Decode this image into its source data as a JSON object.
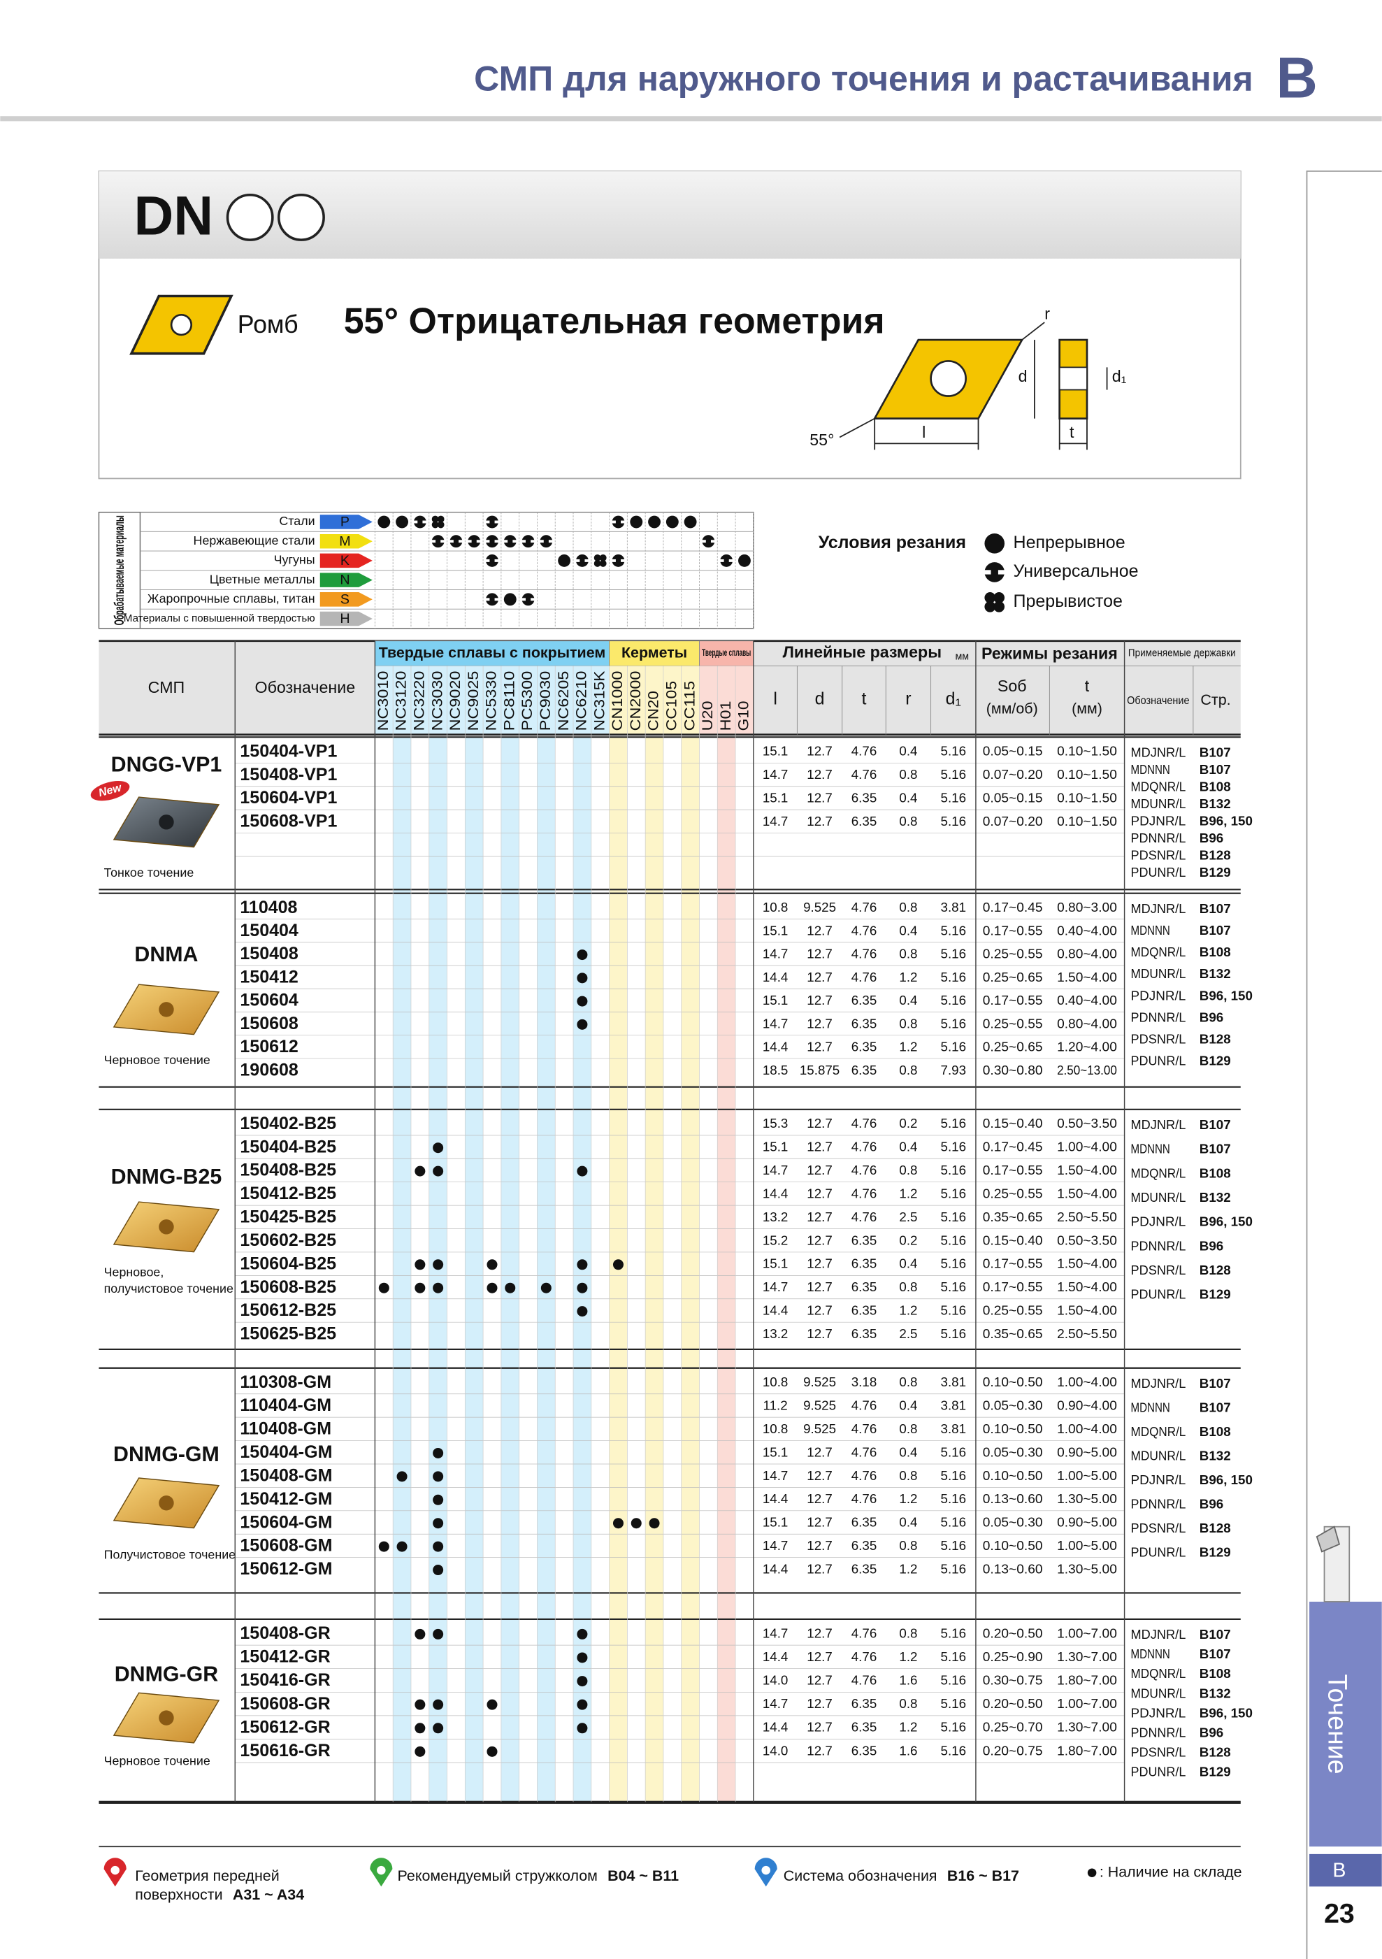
{
  "header": {
    "title": "СМП для наружного точения и растачивания",
    "section": "B"
  },
  "insert": {
    "code": "DN",
    "shape": "Ромб",
    "geometry": "55° Отрицательная геометрия",
    "diagram": {
      "r": "r",
      "d": "d",
      "d1": "d₁",
      "l": "l",
      "t": "t",
      "angle": "55°"
    }
  },
  "materials": {
    "label": "Обрабатываемые материалы",
    "rows": [
      {
        "name": "Стали",
        "code": "P",
        "color": "#2f6fd8",
        "conditions": {
          "NC3010": "Непрерывное",
          "NC3120": "Непрерывное",
          "NC3220": "Универсальное",
          "NC3030": "Прерывистое",
          "NC5330": "Универсальное",
          "CN1000": "Универсальное",
          "CN2000": "Непрерывное",
          "CN20": "Непрерывное",
          "CC105": "Непрерывное",
          "CC115": "Непрерывное"
        }
      },
      {
        "name": "Нержавеющие стали",
        "code": "M",
        "color": "#f2df10",
        "conditions": {
          "NC3030": "Универсальное",
          "NC9020": "Универсальное",
          "NC9025": "Универсальное",
          "NC5330": "Универсальное",
          "PC8110": "Универсальное",
          "PC5300": "Универсальное",
          "PC9030": "Универсальное",
          "U20": "Универсальное"
        }
      },
      {
        "name": "Чугуны",
        "code": "K",
        "color": "#e52420",
        "conditions": {
          "NC5330": "Универсальное",
          "NC6205": "Непрерывное",
          "NC6210": "Универсальное",
          "NC315K": "Прерывистое",
          "CN1000": "Универсальное",
          "H01": "Универсальное",
          "G10": "Непрерывное"
        }
      },
      {
        "name": "Цветные металлы",
        "code": "N",
        "color": "#1f9c3c",
        "conditions": {}
      },
      {
        "name": "Жаропрочные сплавы, титан",
        "code": "S",
        "color": "#f29a1f",
        "conditions": {
          "NC5330": "Универсальное",
          "PC8110": "Непрерывное",
          "PC5300": "Универсальное"
        }
      },
      {
        "name": "Материалы с повышенной твердостью",
        "code": "H",
        "color": "#b5b5b5",
        "conditions": {}
      }
    ]
  },
  "legend": {
    "title": "Условия резания",
    "items": [
      "Непрерывное",
      "Универсальное",
      "Прерывистое"
    ]
  },
  "table": {
    "headers": {
      "insert": "СМП",
      "designation": "Обозначение",
      "dimensions": "Линейные размеры",
      "unit": "мм",
      "l": "l",
      "d": "d",
      "t": "t",
      "r": "r",
      "d1": "d₁",
      "conditions": "Режимы резания",
      "feed": "Sоб",
      "feed_unit": "(мм/об)",
      "depth": "t",
      "depth_unit": "(мм)",
      "holders": "Применяемые державки",
      "holder_code": "Обозначение",
      "holder_page": "Стр."
    },
    "grade_groups": [
      {
        "name": "Твердые сплавы с покрытием",
        "color": "#7fd0f2",
        "tint": "#d4effb",
        "grades": [
          "NC3010",
          "NC3120",
          "NC3220",
          "NC3030",
          "NC9020",
          "NC9025",
          "NC5330",
          "PC8110",
          "PC5300",
          "PC9030",
          "NC6205",
          "NC6210",
          "NC315K"
        ]
      },
      {
        "name": "Керметы",
        "color": "#fbe96b",
        "tint": "#fdf5c9",
        "grades": [
          "CN1000",
          "CN2000",
          "CN20",
          "CC105",
          "CC115"
        ]
      },
      {
        "name": "Твердые сплавы",
        "color": "#f7b5ab",
        "tint": "#fbdcd6",
        "grades": [
          "U20",
          "H01",
          "G10"
        ]
      }
    ],
    "groups": [
      {
        "name": "DNGG-VP1",
        "badge": "New",
        "note": [
          "Тонкое точение"
        ],
        "rows": [
          {
            "code": "150404-VP1",
            "l": "15.1",
            "d": "12.7",
            "t": "4.76",
            "r": "0.4",
            "d1": "5.16",
            "feed": "0.05~0.15",
            "depth": "0.10~1.50",
            "stock": []
          },
          {
            "code": "150408-VP1",
            "l": "14.7",
            "d": "12.7",
            "t": "4.76",
            "r": "0.8",
            "d1": "5.16",
            "feed": "0.07~0.20",
            "depth": "0.10~1.50",
            "stock": []
          },
          {
            "code": "150604-VP1",
            "l": "15.1",
            "d": "12.7",
            "t": "6.35",
            "r": "0.4",
            "d1": "5.16",
            "feed": "0.05~0.15",
            "depth": "0.10~1.50",
            "stock": []
          },
          {
            "code": "150608-VP1",
            "l": "14.7",
            "d": "12.7",
            "t": "6.35",
            "r": "0.8",
            "d1": "5.16",
            "feed": "0.07~0.20",
            "depth": "0.10~1.50",
            "stock": []
          }
        ],
        "holders": [
          {
            "code": "MDJNR/L",
            "page": "B107"
          },
          {
            "code": "MDNNN",
            "page": "B107"
          },
          {
            "code": "MDQNR/L",
            "page": "B108"
          },
          {
            "code": "MDUNR/L",
            "page": "B132"
          },
          {
            "code": "PDJNR/L",
            "page": "B96, 150"
          },
          {
            "code": "PDNNR/L",
            "page": "B96"
          },
          {
            "code": "PDSNR/L",
            "page": "B128"
          },
          {
            "code": "PDUNR/L",
            "page": "B129"
          }
        ]
      },
      {
        "name": "DNMA",
        "note": [
          "Черновое точение"
        ],
        "rows": [
          {
            "code": "110408",
            "l": "10.8",
            "d": "9.525",
            "t": "4.76",
            "r": "0.8",
            "d1": "3.81",
            "feed": "0.17~0.45",
            "depth": "0.80~3.00",
            "stock": []
          },
          {
            "code": "150404",
            "l": "15.1",
            "d": "12.7",
            "t": "4.76",
            "r": "0.4",
            "d1": "5.16",
            "feed": "0.17~0.55",
            "depth": "0.40~4.00",
            "stock": []
          },
          {
            "code": "150408",
            "l": "14.7",
            "d": "12.7",
            "t": "4.76",
            "r": "0.8",
            "d1": "5.16",
            "feed": "0.25~0.55",
            "depth": "0.80~4.00",
            "stock": [
              "NC6210"
            ]
          },
          {
            "code": "150412",
            "l": "14.4",
            "d": "12.7",
            "t": "4.76",
            "r": "1.2",
            "d1": "5.16",
            "feed": "0.25~0.65",
            "depth": "1.50~4.00",
            "stock": [
              "NC6210"
            ]
          },
          {
            "code": "150604",
            "l": "15.1",
            "d": "12.7",
            "t": "6.35",
            "r": "0.4",
            "d1": "5.16",
            "feed": "0.17~0.55",
            "depth": "0.40~4.00",
            "stock": [
              "NC6210"
            ]
          },
          {
            "code": "150608",
            "l": "14.7",
            "d": "12.7",
            "t": "6.35",
            "r": "0.8",
            "d1": "5.16",
            "feed": "0.25~0.55",
            "depth": "0.80~4.00",
            "stock": [
              "NC6210"
            ]
          },
          {
            "code": "150612",
            "l": "14.4",
            "d": "12.7",
            "t": "6.35",
            "r": "1.2",
            "d1": "5.16",
            "feed": "0.25~0.65",
            "depth": "1.20~4.00",
            "stock": []
          },
          {
            "code": "190608",
            "l": "18.5",
            "d": "15.875",
            "t": "6.35",
            "r": "0.8",
            "d1": "7.93",
            "feed": "0.30~0.80",
            "depth": "2.50~13.00",
            "stock": []
          }
        ],
        "holders": [
          {
            "code": "MDJNR/L",
            "page": "B107"
          },
          {
            "code": "MDNNN",
            "page": "B107"
          },
          {
            "code": "MDQNR/L",
            "page": "B108"
          },
          {
            "code": "MDUNR/L",
            "page": "B132"
          },
          {
            "code": "PDJNR/L",
            "page": "B96, 150"
          },
          {
            "code": "PDNNR/L",
            "page": "B96"
          },
          {
            "code": "PDSNR/L",
            "page": "B128"
          },
          {
            "code": "PDUNR/L",
            "page": "B129"
          }
        ]
      },
      {
        "name": "DNMG-B25",
        "note": [
          "Черновое,",
          "получистовое точение"
        ],
        "rows": [
          {
            "code": "150402-B25",
            "l": "15.3",
            "d": "12.7",
            "t": "4.76",
            "r": "0.2",
            "d1": "5.16",
            "feed": "0.15~0.40",
            "depth": "0.50~3.50",
            "stock": []
          },
          {
            "code": "150404-B25",
            "l": "15.1",
            "d": "12.7",
            "t": "4.76",
            "r": "0.4",
            "d1": "5.16",
            "feed": "0.17~0.45",
            "depth": "1.00~4.00",
            "stock": [
              "NC3030"
            ]
          },
          {
            "code": "150408-B25",
            "l": "14.7",
            "d": "12.7",
            "t": "4.76",
            "r": "0.8",
            "d1": "5.16",
            "feed": "0.17~0.55",
            "depth": "1.50~4.00",
            "stock": [
              "NC3220",
              "NC3030",
              "NC6210"
            ]
          },
          {
            "code": "150412-B25",
            "l": "14.4",
            "d": "12.7",
            "t": "4.76",
            "r": "1.2",
            "d1": "5.16",
            "feed": "0.25~0.55",
            "depth": "1.50~4.00",
            "stock": []
          },
          {
            "code": "150425-B25",
            "l": "13.2",
            "d": "12.7",
            "t": "4.76",
            "r": "2.5",
            "d1": "5.16",
            "feed": "0.35~0.65",
            "depth": "2.50~5.50",
            "stock": []
          },
          {
            "code": "150602-B25",
            "l": "15.2",
            "d": "12.7",
            "t": "6.35",
            "r": "0.2",
            "d1": "5.16",
            "feed": "0.15~0.40",
            "depth": "0.50~3.50",
            "stock": []
          },
          {
            "code": "150604-B25",
            "l": "15.1",
            "d": "12.7",
            "t": "6.35",
            "r": "0.4",
            "d1": "5.16",
            "feed": "0.17~0.55",
            "depth": "1.50~4.00",
            "stock": [
              "NC3220",
              "NC3030",
              "NC5330",
              "NC6210",
              "CN1000"
            ]
          },
          {
            "code": "150608-B25",
            "l": "14.7",
            "d": "12.7",
            "t": "6.35",
            "r": "0.8",
            "d1": "5.16",
            "feed": "0.17~0.55",
            "depth": "1.50~4.00",
            "stock": [
              "NC3010",
              "NC3220",
              "NC3030",
              "NC5330",
              "PC8110",
              "PC9030",
              "NC6210"
            ]
          },
          {
            "code": "150612-B25",
            "l": "14.4",
            "d": "12.7",
            "t": "6.35",
            "r": "1.2",
            "d1": "5.16",
            "feed": "0.25~0.55",
            "depth": "1.50~4.00",
            "stock": [
              "NC6210"
            ]
          },
          {
            "code": "150625-B25",
            "l": "13.2",
            "d": "12.7",
            "t": "6.35",
            "r": "2.5",
            "d1": "5.16",
            "feed": "0.35~0.65",
            "depth": "2.50~5.50",
            "stock": []
          }
        ],
        "holders": [
          {
            "code": "MDJNR/L",
            "page": "B107"
          },
          {
            "code": "MDNNN",
            "page": "B107"
          },
          {
            "code": "MDQNR/L",
            "page": "B108"
          },
          {
            "code": "MDUNR/L",
            "page": "B132"
          },
          {
            "code": "PDJNR/L",
            "page": "B96, 150"
          },
          {
            "code": "PDNNR/L",
            "page": "B96"
          },
          {
            "code": "PDSNR/L",
            "page": "B128"
          },
          {
            "code": "PDUNR/L",
            "page": "B129"
          }
        ]
      },
      {
        "name": "DNMG-GM",
        "note": [
          "Получистовое точение"
        ],
        "rows": [
          {
            "code": "110308-GM",
            "l": "10.8",
            "d": "9.525",
            "t": "3.18",
            "r": "0.8",
            "d1": "3.81",
            "feed": "0.10~0.50",
            "depth": "1.00~4.00",
            "stock": []
          },
          {
            "code": "110404-GM",
            "l": "11.2",
            "d": "9.525",
            "t": "4.76",
            "r": "0.4",
            "d1": "3.81",
            "feed": "0.05~0.30",
            "depth": "0.90~4.00",
            "stock": []
          },
          {
            "code": "110408-GM",
            "l": "10.8",
            "d": "9.525",
            "t": "4.76",
            "r": "0.8",
            "d1": "3.81",
            "feed": "0.10~0.50",
            "depth": "1.00~4.00",
            "stock": []
          },
          {
            "code": "150404-GM",
            "l": "15.1",
            "d": "12.7",
            "t": "4.76",
            "r": "0.4",
            "d1": "5.16",
            "feed": "0.05~0.30",
            "depth": "0.90~5.00",
            "stock": [
              "NC3030"
            ]
          },
          {
            "code": "150408-GM",
            "l": "14.7",
            "d": "12.7",
            "t": "4.76",
            "r": "0.8",
            "d1": "5.16",
            "feed": "0.10~0.50",
            "depth": "1.00~5.00",
            "stock": [
              "NC3120",
              "NC3030"
            ]
          },
          {
            "code": "150412-GM",
            "l": "14.4",
            "d": "12.7",
            "t": "4.76",
            "r": "1.2",
            "d1": "5.16",
            "feed": "0.13~0.60",
            "depth": "1.30~5.00",
            "stock": [
              "NC3030"
            ]
          },
          {
            "code": "150604-GM",
            "l": "15.1",
            "d": "12.7",
            "t": "6.35",
            "r": "0.4",
            "d1": "5.16",
            "feed": "0.05~0.30",
            "depth": "0.90~5.00",
            "stock": [
              "NC3030",
              "CN1000",
              "CN2000",
              "CN20"
            ]
          },
          {
            "code": "150608-GM",
            "l": "14.7",
            "d": "12.7",
            "t": "6.35",
            "r": "0.8",
            "d1": "5.16",
            "feed": "0.10~0.50",
            "depth": "1.00~5.00",
            "stock": [
              "NC3010",
              "NC3120",
              "NC3030"
            ]
          },
          {
            "code": "150612-GM",
            "l": "14.4",
            "d": "12.7",
            "t": "6.35",
            "r": "1.2",
            "d1": "5.16",
            "feed": "0.13~0.60",
            "depth": "1.30~5.00",
            "stock": [
              "NC3030"
            ]
          }
        ],
        "holders": [
          {
            "code": "MDJNR/L",
            "page": "B107"
          },
          {
            "code": "MDNNN",
            "page": "B107"
          },
          {
            "code": "MDQNR/L",
            "page": "B108"
          },
          {
            "code": "MDUNR/L",
            "page": "B132"
          },
          {
            "code": "PDJNR/L",
            "page": "B96, 150"
          },
          {
            "code": "PDNNR/L",
            "page": "B96"
          },
          {
            "code": "PDSNR/L",
            "page": "B128"
          },
          {
            "code": "PDUNR/L",
            "page": "B129"
          }
        ]
      },
      {
        "name": "DNMG-GR",
        "note": [
          "Черновое точение"
        ],
        "rows": [
          {
            "code": "150408-GR",
            "l": "14.7",
            "d": "12.7",
            "t": "4.76",
            "r": "0.8",
            "d1": "5.16",
            "feed": "0.20~0.50",
            "depth": "1.00~7.00",
            "stock": [
              "NC3220",
              "NC3030",
              "NC6210"
            ]
          },
          {
            "code": "150412-GR",
            "l": "14.4",
            "d": "12.7",
            "t": "4.76",
            "r": "1.2",
            "d1": "5.16",
            "feed": "0.25~0.90",
            "depth": "1.30~7.00",
            "stock": [
              "NC6210"
            ]
          },
          {
            "code": "150416-GR",
            "l": "14.0",
            "d": "12.7",
            "t": "4.76",
            "r": "1.6",
            "d1": "5.16",
            "feed": "0.30~0.75",
            "depth": "1.80~7.00",
            "stock": [
              "NC6210"
            ]
          },
          {
            "code": "150608-GR",
            "l": "14.7",
            "d": "12.7",
            "t": "6.35",
            "r": "0.8",
            "d1": "5.16",
            "feed": "0.20~0.50",
            "depth": "1.00~7.00",
            "stock": [
              "NC3220",
              "NC3030",
              "NC5330",
              "NC6210"
            ]
          },
          {
            "code": "150612-GR",
            "l": "14.4",
            "d": "12.7",
            "t": "6.35",
            "r": "1.2",
            "d1": "5.16",
            "feed": "0.25~0.70",
            "depth": "1.30~7.00",
            "stock": [
              "NC3220",
              "NC3030",
              "NC6210"
            ]
          },
          {
            "code": "150616-GR",
            "l": "14.0",
            "d": "12.7",
            "t": "6.35",
            "r": "1.6",
            "d1": "5.16",
            "feed": "0.20~0.75",
            "depth": "1.80~7.00",
            "stock": [
              "NC3220",
              "NC5330"
            ]
          }
        ],
        "holders": [
          {
            "code": "MDJNR/L",
            "page": "B107"
          },
          {
            "code": "MDNNN",
            "page": "B107"
          },
          {
            "code": "MDQNR/L",
            "page": "B108"
          },
          {
            "code": "MDUNR/L",
            "page": "B132"
          },
          {
            "code": "PDJNR/L",
            "page": "B96, 150"
          },
          {
            "code": "PDNNR/L",
            "page": "B96"
          },
          {
            "code": "PDSNR/L",
            "page": "B128"
          },
          {
            "code": "PDUNR/L",
            "page": "B129"
          }
        ]
      }
    ]
  },
  "footer": {
    "items": [
      {
        "text": [
          "Геометрия передней",
          "поверхности"
        ],
        "ref": "A31 ~ A34",
        "color": "#d8262b"
      },
      {
        "text": [
          "Рекомендуемый стружколом"
        ],
        "ref": "B04 ~ B11",
        "color": "#3aa93f"
      },
      {
        "text": [
          "Система обозначения"
        ],
        "ref": "B16 ~ B17",
        "color": "#2f7fd0"
      }
    ],
    "stock_note": ": Наличие на складе"
  },
  "side": {
    "tab": "Точение",
    "section": "B",
    "page": "23"
  }
}
